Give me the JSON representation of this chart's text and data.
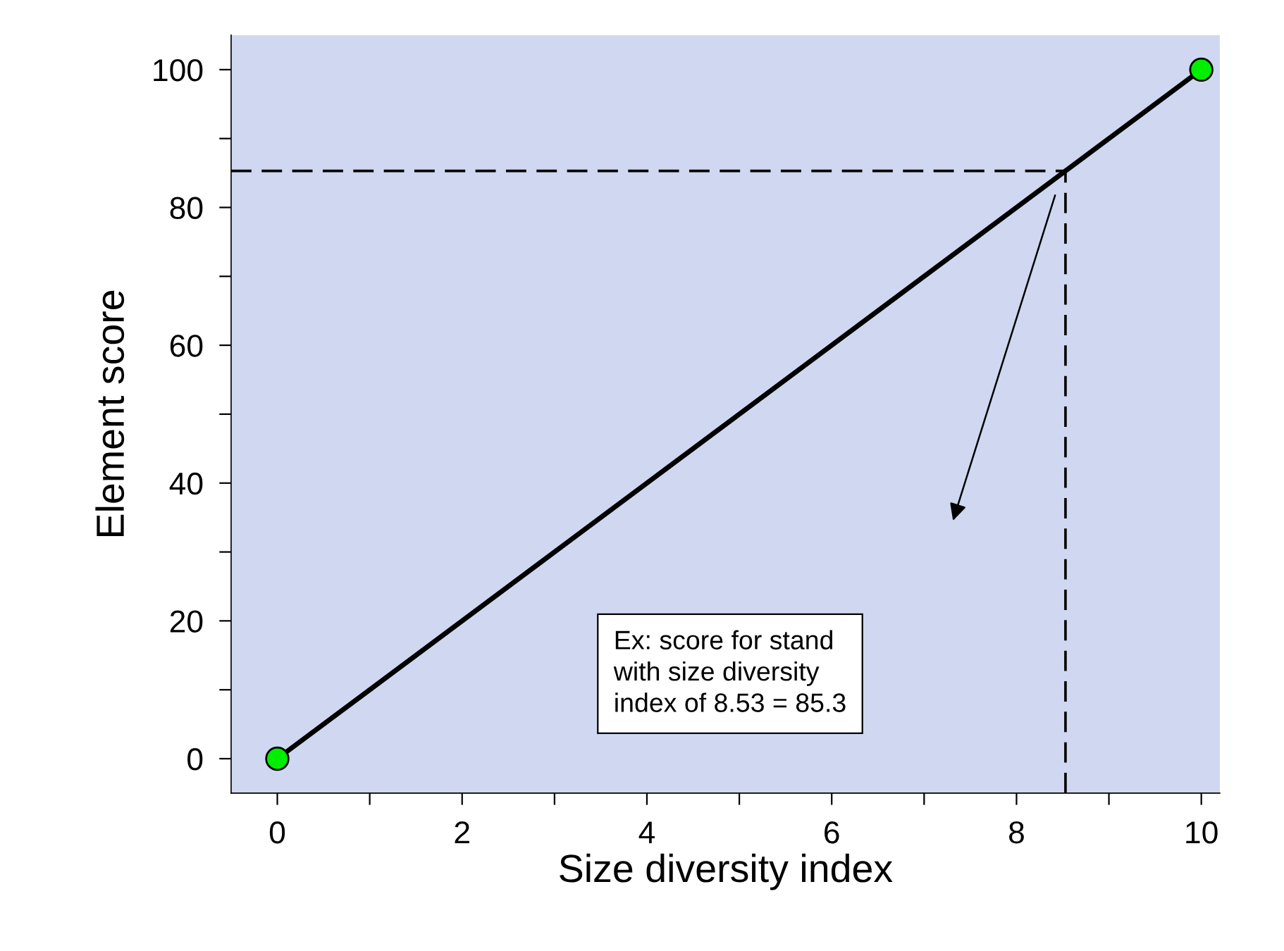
{
  "chart_data": {
    "type": "line",
    "xlabel": "Size diversity index",
    "ylabel": "Element score",
    "x": [
      0,
      10
    ],
    "series": [
      {
        "color": "#000000",
        "values": [
          0,
          100
        ],
        "marker": "none"
      },
      {
        "type": "scatter",
        "color": "#00ee00",
        "values": [
          0,
          100
        ],
        "marker": "circle"
      }
    ],
    "xlim": [
      -0.5,
      10.2
    ],
    "ylim": [
      -5,
      105
    ],
    "xticks": [
      0,
      {
        "value": 1,
        "label": null
      },
      2,
      {
        "value": 3,
        "label": null
      },
      4,
      {
        "value": 5,
        "label": null
      },
      6,
      {
        "value": 7,
        "label": null
      },
      8,
      {
        "value": 9,
        "label": null
      },
      10
    ],
    "yticks": [
      0,
      {
        "value": 10,
        "label": null
      },
      20,
      {
        "value": 30,
        "label": null
      },
      40,
      {
        "value": 50,
        "label": null
      },
      60,
      {
        "value": 70,
        "label": null
      },
      80,
      {
        "value": 90,
        "label": null
      },
      100
    ],
    "ref_lines": [
      {
        "axis": "y",
        "value": 85.3,
        "line_style": "dashed",
        "color": "#000000"
      },
      {
        "axis": "x",
        "value": 8.53,
        "line_style": "dashed",
        "color": "#000000"
      }
    ],
    "annotations": [
      "Ex: score for stand\nwith size diversity\nindex of 8.53 = 85.3"
    ],
    "grid": false,
    "legend": false
  }
}
